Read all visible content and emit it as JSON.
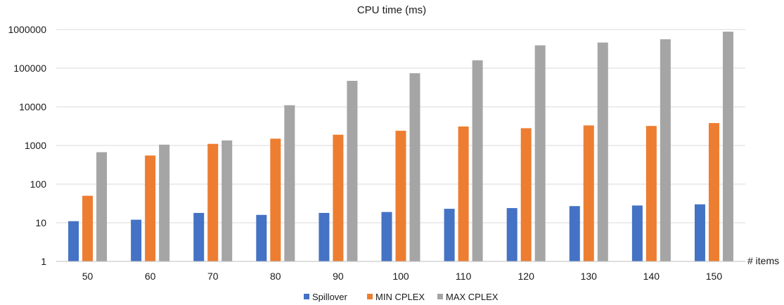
{
  "chart_data": {
    "type": "bar",
    "title": "CPU time (ms)",
    "xlabel": "# items",
    "ylabel": "",
    "y_scale": "log",
    "ylim": [
      1,
      1000000
    ],
    "y_ticks": [
      "1",
      "10",
      "100",
      "1000",
      "10000",
      "100000",
      "1000000"
    ],
    "categories": [
      "50",
      "60",
      "70",
      "80",
      "90",
      "100",
      "110",
      "120",
      "130",
      "140",
      "150"
    ],
    "series": [
      {
        "name": "Spillover",
        "color": "#4472C4",
        "values": [
          11,
          12,
          18,
          16,
          18,
          19,
          23,
          24,
          27,
          28,
          30
        ]
      },
      {
        "name": "MIN CPLEX",
        "color": "#ED7D31",
        "values": [
          50,
          550,
          1100,
          1500,
          1900,
          2400,
          3100,
          2800,
          3300,
          3200,
          3800
        ]
      },
      {
        "name": "MAX CPLEX",
        "color": "#A5A5A5",
        "values": [
          670,
          1050,
          1350,
          11000,
          47000,
          74000,
          160000,
          390000,
          460000,
          560000,
          880000
        ]
      }
    ],
    "grid": true,
    "gridline_color": "#D9D9D9",
    "legend_position": "bottom"
  }
}
